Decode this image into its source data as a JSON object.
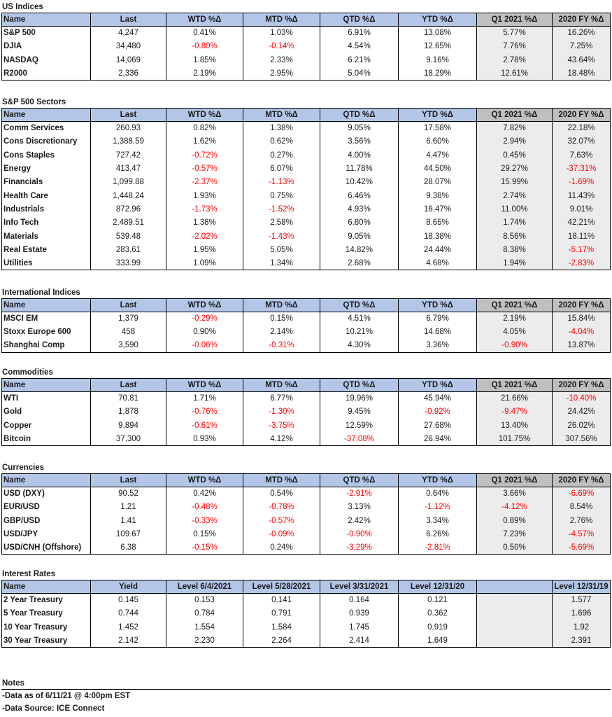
{
  "sections": [
    {
      "title": "US Indices",
      "headers": [
        "Name",
        "Last",
        "WTD %Δ",
        "MTD %Δ",
        "QTD %Δ",
        "YTD %Δ",
        "Q1 2021 %Δ",
        "2020 FY %Δ"
      ],
      "rows": [
        [
          "S&P 500",
          "4,247",
          "0.41%",
          "1.03%",
          "6.91%",
          "13.08%",
          "5.77%",
          "16.26%"
        ],
        [
          "DJIA",
          "34,480",
          "-0.80%",
          "-0.14%",
          "4.54%",
          "12.65%",
          "7.76%",
          "7.25%"
        ],
        [
          "NASDAQ",
          "14,069",
          "1.85%",
          "2.33%",
          "6.21%",
          "9.16%",
          "2.78%",
          "43.64%"
        ],
        [
          "R2000",
          "2,336",
          "2.19%",
          "2.95%",
          "5.04%",
          "18.29%",
          "12.61%",
          "18.48%"
        ]
      ]
    },
    {
      "title": "S&P 500 Sectors",
      "headers": [
        "Name",
        "Last",
        "WTD %Δ",
        "MTD %Δ",
        "QTD %Δ",
        "YTD %Δ",
        "Q1 2021 %Δ",
        "2020 FY %Δ"
      ],
      "rows": [
        [
          "Comm Services",
          "260.93",
          "0.82%",
          "1.38%",
          "9.05%",
          "17.58%",
          "7.82%",
          "22.18%"
        ],
        [
          "Cons Discretionary",
          "1,388.59",
          "1.62%",
          "0.62%",
          "3.56%",
          "6.60%",
          "2.94%",
          "32.07%"
        ],
        [
          "Cons Staples",
          "727.42",
          "-0.72%",
          "0.27%",
          "4.00%",
          "4.47%",
          "0.45%",
          "7.63%"
        ],
        [
          "Energy",
          "413.47",
          "-0.57%",
          "6.07%",
          "11.78%",
          "44.50%",
          "29.27%",
          "-37.31%"
        ],
        [
          "Financials",
          "1,099.88",
          "-2.37%",
          "-1.13%",
          "10.42%",
          "28.07%",
          "15.99%",
          "-1.69%"
        ],
        [
          "Health Care",
          "1,448.24",
          "1.93%",
          "0.75%",
          "6.46%",
          "9.38%",
          "2.74%",
          "11.43%"
        ],
        [
          "Industrials",
          "872.96",
          "-1.73%",
          "-1.52%",
          "4.93%",
          "16.47%",
          "11.00%",
          "9.01%"
        ],
        [
          "Info Tech",
          "2,489.51",
          "1.38%",
          "2.58%",
          "6.80%",
          "8.65%",
          "1.74%",
          "42.21%"
        ],
        [
          "Materials",
          "539.48",
          "-2.02%",
          "-1.43%",
          "9.05%",
          "18.38%",
          "8.56%",
          "18.11%"
        ],
        [
          "Real Estate",
          "283.61",
          "1.95%",
          "5.05%",
          "14.82%",
          "24.44%",
          "8.38%",
          "-5.17%"
        ],
        [
          "Utilities",
          "333.99",
          "1.09%",
          "1.34%",
          "2.68%",
          "4.68%",
          "1.94%",
          "-2.83%"
        ]
      ]
    },
    {
      "title": "International Indices",
      "headers": [
        "Name",
        "Last",
        "WTD %Δ",
        "MTD %Δ",
        "QTD %Δ",
        "YTD %Δ",
        "Q1 2021 %Δ",
        "2020 FY %Δ"
      ],
      "rows": [
        [
          "MSCI EM",
          "1,379",
          "-0.29%",
          "0.15%",
          "4.51%",
          "6.79%",
          "2.19%",
          "15.84%"
        ],
        [
          "Stoxx Europe 600",
          "458",
          "0.90%",
          "2.14%",
          "10.21%",
          "14.68%",
          "4.05%",
          "-4.04%"
        ],
        [
          "Shanghai Comp",
          "3,590",
          "-0.06%",
          "-0.31%",
          "4.30%",
          "3.36%",
          "-0.90%",
          "13.87%"
        ]
      ]
    },
    {
      "title": "Commodities",
      "headers": [
        "Name",
        "Last",
        "WTD %Δ",
        "MTD %Δ",
        "QTD %Δ",
        "YTD %Δ",
        "Q1 2021 %Δ",
        "2020 FY %Δ"
      ],
      "rows": [
        [
          "WTI",
          "70.81",
          "1.71%",
          "6.77%",
          "19.96%",
          "45.94%",
          "21.66%",
          "-10.40%"
        ],
        [
          "Gold",
          "1,878",
          "-0.76%",
          "-1.30%",
          "9.45%",
          "-0.92%",
          "-9.47%",
          "24.42%"
        ],
        [
          "Copper",
          "9,894",
          "-0.61%",
          "-3.75%",
          "12.59%",
          "27.68%",
          "13.40%",
          "26.02%"
        ],
        [
          "Bitcoin",
          "37,300",
          "0.93%",
          "4.12%",
          "-37.08%",
          "26.94%",
          "101.75%",
          "307.56%"
        ]
      ]
    },
    {
      "title": "Currencies",
      "headers": [
        "Name",
        "Last",
        "WTD %Δ",
        "MTD %Δ",
        "QTD %Δ",
        "YTD %Δ",
        "Q1 2021 %Δ",
        "2020 FY %Δ"
      ],
      "rows": [
        [
          "USD (DXY)",
          "90.52",
          "0.42%",
          "0.54%",
          "-2.91%",
          "0.64%",
          "3.66%",
          "-6.69%"
        ],
        [
          "EUR/USD",
          "1.21",
          "-0.48%",
          "-0.78%",
          "3.13%",
          "-1.12%",
          "-4.12%",
          "8.54%"
        ],
        [
          "GBP/USD",
          "1.41",
          "-0.33%",
          "-0.57%",
          "2.42%",
          "3.34%",
          "0.89%",
          "2.76%"
        ],
        [
          "USD/JPY",
          "109.67",
          "0.15%",
          "-0.09%",
          "-0.90%",
          "6.26%",
          "7.23%",
          "-4.57%"
        ],
        [
          "USD/CNH (Offshore)",
          "6.38",
          "-0.15%",
          "0.24%",
          "-3.29%",
          "-2.81%",
          "0.50%",
          "-5.69%"
        ]
      ]
    },
    {
      "title": "Interest Rates",
      "headers": [
        "Name",
        "Yield",
        "Level 6/4/2021",
        "Level 5/28/2021",
        "Level 3/31/2021",
        "Level 12/31/20",
        "",
        "Level 12/31/19"
      ],
      "rows": [
        [
          "2 Year Treasury",
          "0.145",
          "0.153",
          "0.141",
          "0.164",
          "0.121",
          "",
          "1.577"
        ],
        [
          "5 Year Treasury",
          "0.744",
          "0.784",
          "0.791",
          "0.939",
          "0.362",
          "",
          "1.696"
        ],
        [
          "10 Year Treasury",
          "1.452",
          "1.554",
          "1.584",
          "1.745",
          "0.919",
          "",
          "1.92"
        ],
        [
          "30 Year Treasury",
          "2.142",
          "2.230",
          "2.264",
          "2.414",
          "1.649",
          "",
          "2.391"
        ]
      ]
    }
  ],
  "notes": {
    "title": "Notes",
    "lines": [
      "-Data as of 6/11/21 @ 4:00pm EST",
      "-Data Source: ICE Connect"
    ]
  },
  "colors": {
    "header_fill": "#b4c6e7",
    "gray_header_fill": "#bfbfbf",
    "gray_column_fill": "#ececec",
    "negative_text": "#ff0000"
  }
}
